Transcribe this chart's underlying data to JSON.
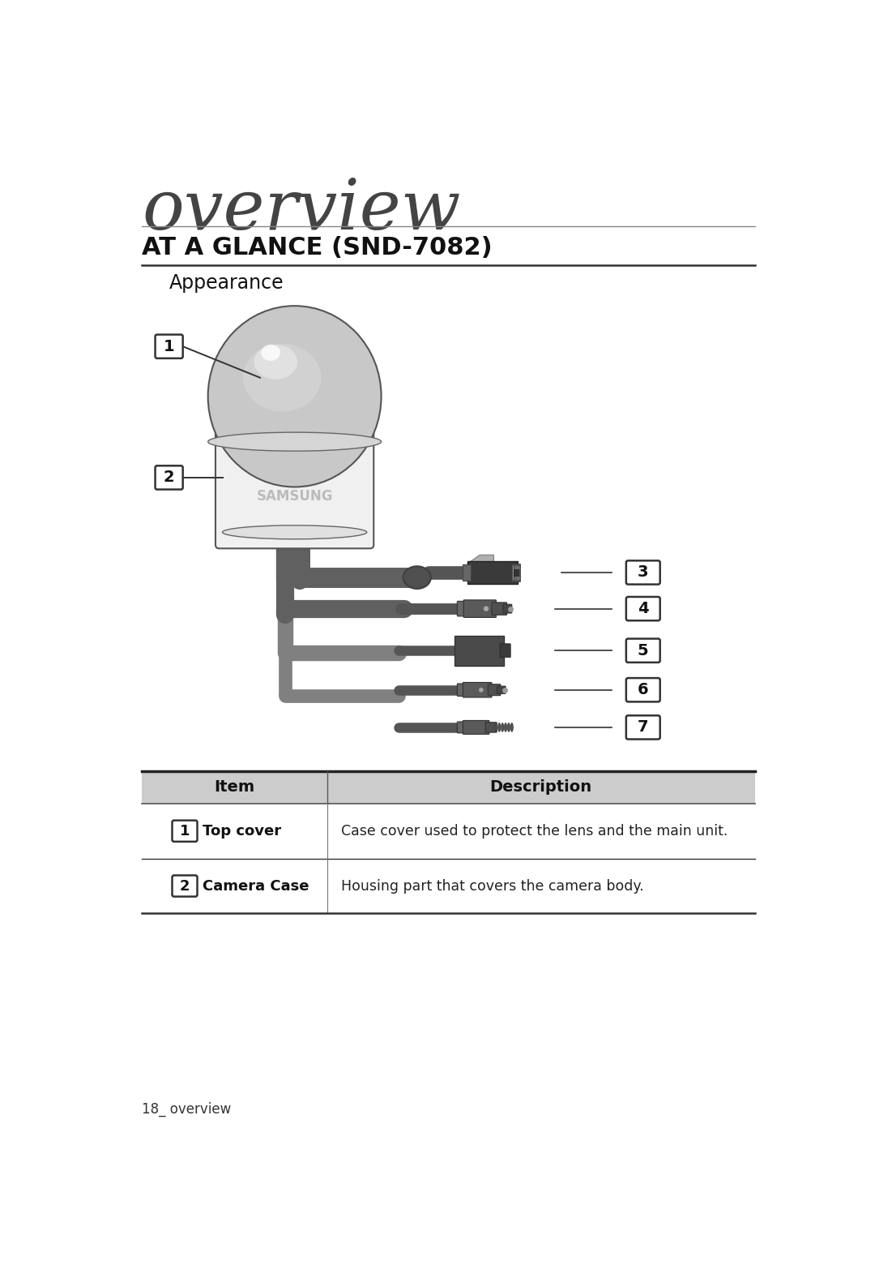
{
  "title_overview": "overview",
  "title_section": "AT A GLANCE (SND-7082)",
  "subtitle": "Appearance",
  "bg_color": "#ffffff",
  "overview_color": "#555555",
  "section_color": "#111111",
  "line_color": "#888888",
  "table_header_bg": "#cccccc",
  "table_headers": [
    "Item",
    "Description"
  ],
  "table_rows": [
    {
      "num": "1",
      "item": "Top cover",
      "desc": "Case cover used to protect the lens and the main unit."
    },
    {
      "num": "2",
      "item": "Camera Case",
      "desc": "Housing part that covers the camera body."
    }
  ],
  "footer_text": "18_ overview",
  "connector_labels": [
    "3",
    "4",
    "5",
    "6",
    "7"
  ],
  "cable_dark": "#606060",
  "cable_mid": "#808080",
  "cable_light": "#a0a0a0",
  "connector_dark": "#505050",
  "connector_mid": "#707070"
}
